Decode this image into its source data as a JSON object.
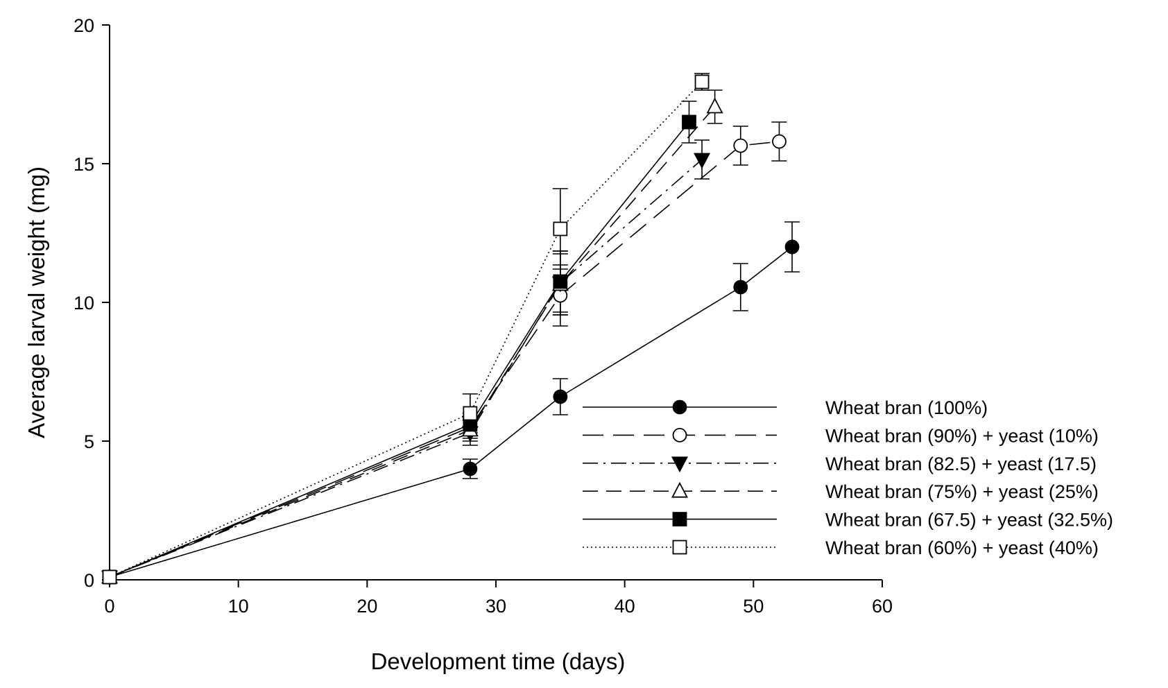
{
  "chart_data": {
    "type": "line",
    "xlabel": "Development time (days)",
    "ylabel": "Average larval weight (mg)",
    "xlim": [
      0,
      60
    ],
    "ylim": [
      0,
      20
    ],
    "xticks": [
      0,
      10,
      20,
      30,
      40,
      50,
      60
    ],
    "yticks": [
      0,
      5,
      10,
      15,
      20
    ],
    "xtick_labels": [
      "0",
      "10",
      "20",
      "30",
      "40",
      "50",
      "60"
    ],
    "ytick_labels": [
      "0",
      "5",
      "10",
      "15",
      "20"
    ],
    "grid": false,
    "legend_position": "bottom-right",
    "series": [
      {
        "name": "Wheat bran (100%)",
        "marker": "circle-filled",
        "dash": "solid",
        "x": [
          0,
          28,
          35,
          49,
          53
        ],
        "y": [
          0.1,
          4.0,
          6.6,
          10.55,
          12.0
        ],
        "err": [
          0.05,
          0.35,
          0.65,
          0.85,
          0.9
        ]
      },
      {
        "name": "Wheat bran (90%) + yeast (10%)",
        "marker": "circle-open",
        "dash": "long-dash",
        "x": [
          0,
          28,
          35,
          49,
          52
        ],
        "y": [
          0.1,
          5.5,
          10.25,
          15.65,
          15.8
        ],
        "err": [
          0.05,
          0.4,
          1.1,
          0.7,
          0.7
        ]
      },
      {
        "name": "Wheat bran (82.5) + yeast (17.5)",
        "marker": "triangle-down-filled",
        "dash": "dash-dot",
        "x": [
          0,
          28,
          35,
          46
        ],
        "y": [
          0.1,
          5.3,
          10.7,
          15.15
        ],
        "err": [
          0.05,
          0.45,
          1.15,
          0.7
        ]
      },
      {
        "name": "Wheat bran (75%) + yeast (25%)",
        "marker": "triangle-up-open",
        "dash": "medium-dash",
        "x": [
          0,
          28,
          35,
          47
        ],
        "y": [
          0.1,
          5.4,
          10.65,
          17.05
        ],
        "err": [
          0.05,
          0.4,
          1.1,
          0.6
        ]
      },
      {
        "name": "Wheat bran (67.5) + yeast (32.5%)",
        "marker": "square-filled",
        "dash": "solid",
        "x": [
          0,
          28,
          35,
          45
        ],
        "y": [
          0.1,
          5.6,
          10.75,
          16.5
        ],
        "err": [
          0.05,
          0.4,
          1.1,
          0.75
        ]
      },
      {
        "name": "Wheat bran (60%) + yeast (40%)",
        "marker": "square-open",
        "dash": "dotted",
        "x": [
          0,
          28,
          35,
          46
        ],
        "y": [
          0.1,
          6.0,
          12.65,
          17.95
        ],
        "err": [
          0.05,
          0.7,
          1.45,
          0.3
        ]
      }
    ]
  }
}
